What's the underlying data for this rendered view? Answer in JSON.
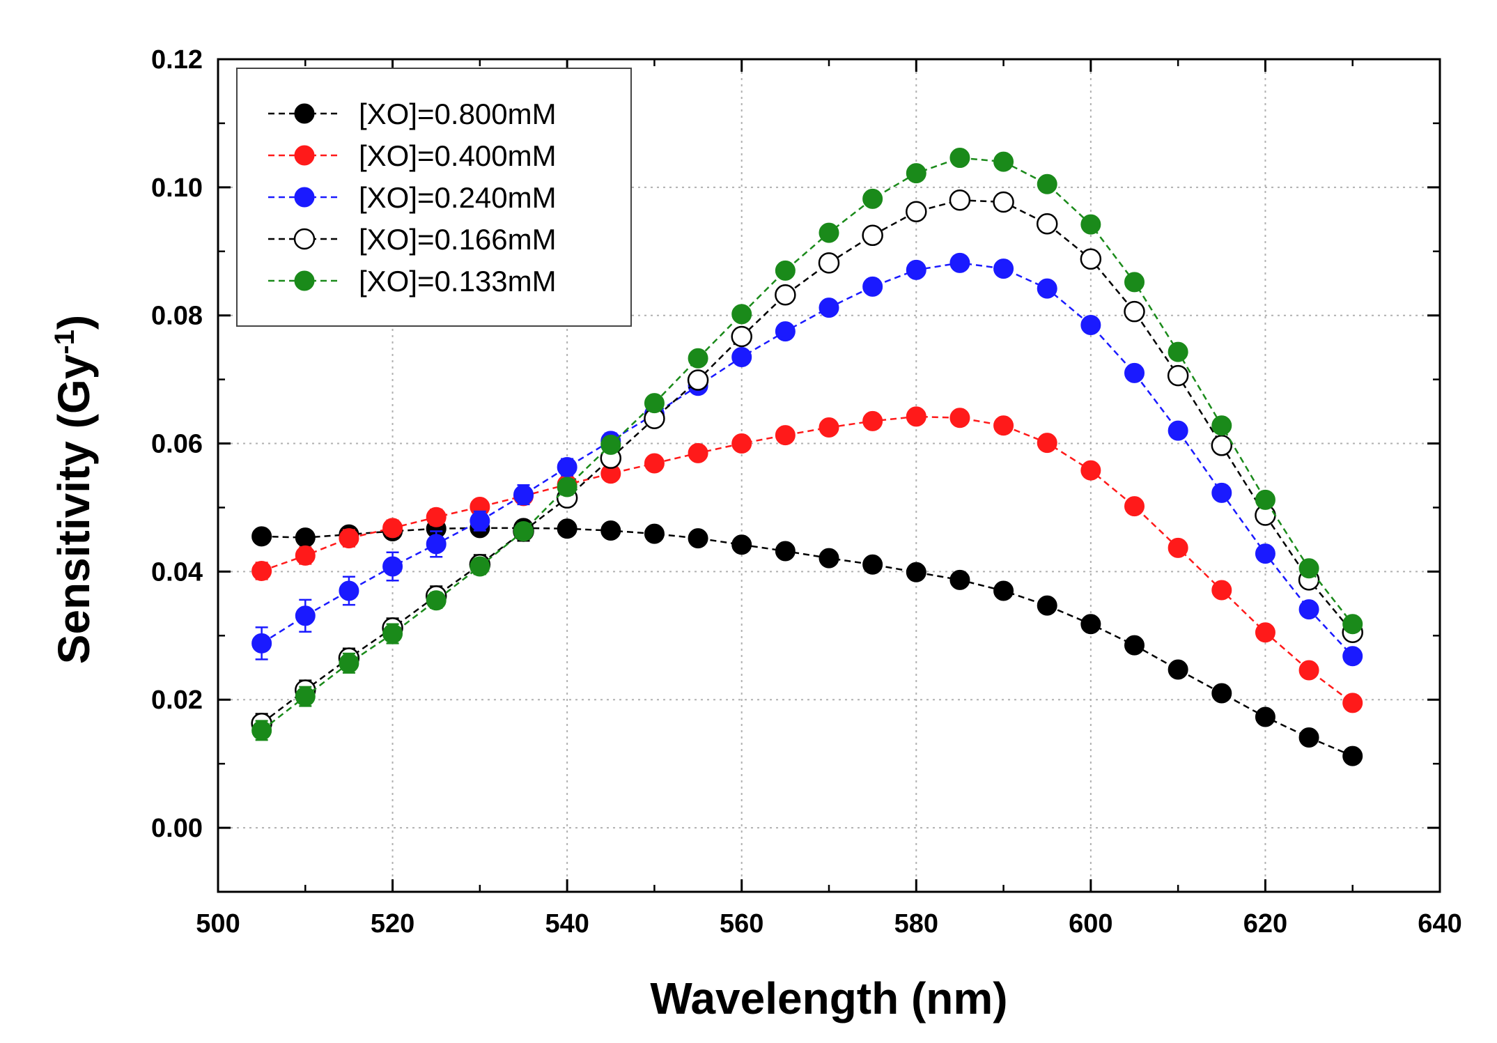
{
  "chart_data": {
    "type": "line",
    "title": "",
    "xlabel": "Wavelength (nm)",
    "ylabel_main": "Sensitivity (Gy",
    "ylabel_sup": "-1",
    "ylabel_close": ")",
    "xlim": [
      500,
      640
    ],
    "ylim": [
      -0.01,
      0.12
    ],
    "x_ticks": [
      500,
      520,
      540,
      560,
      580,
      600,
      620,
      640
    ],
    "x_tick_labels": [
      "500",
      "520",
      "540",
      "560",
      "580",
      "600",
      "620",
      "640"
    ],
    "y_ticks": [
      0.0,
      0.02,
      0.04,
      0.06,
      0.08,
      0.1,
      0.12
    ],
    "y_tick_labels": [
      "0.00",
      "0.02",
      "0.04",
      "0.06",
      "0.08",
      "0.10",
      "0.12"
    ],
    "grid": true,
    "legend_position": "top-left",
    "x": [
      505,
      510,
      515,
      520,
      525,
      530,
      535,
      540,
      545,
      550,
      555,
      560,
      565,
      570,
      575,
      580,
      585,
      590,
      595,
      600,
      605,
      610,
      615,
      620,
      625,
      630
    ],
    "series": [
      {
        "name": "[XO]=0.800mM",
        "color": "#000000",
        "marker": "filled",
        "values": [
          0.0455,
          0.0453,
          0.0458,
          0.0463,
          0.0467,
          0.0468,
          0.0468,
          0.0467,
          0.0464,
          0.0459,
          0.0452,
          0.0442,
          0.0432,
          0.0421,
          0.0411,
          0.0399,
          0.0387,
          0.037,
          0.0347,
          0.0318,
          0.0285,
          0.0247,
          0.021,
          0.0173,
          0.0141,
          0.0112
        ],
        "errors": [
          0.0008,
          0.0008,
          0.0008,
          0.0008,
          0.0008,
          0.0008,
          0.0008,
          0.0008,
          0.0008,
          0.0008,
          0.0008,
          0.0008,
          0.0008,
          0.0008,
          0.0008,
          0.0008,
          0.0008,
          0.0008,
          0.0008,
          0.0008,
          0.0008,
          0.0008,
          0.0008,
          0.0008,
          0.0008,
          0.0008
        ]
      },
      {
        "name": "[XO]=0.400mM",
        "color": "#ff1a1a",
        "marker": "filled",
        "values": [
          0.0401,
          0.0425,
          0.0452,
          0.0468,
          0.0485,
          0.0501,
          0.0518,
          0.0536,
          0.0553,
          0.0569,
          0.0585,
          0.06,
          0.0613,
          0.0625,
          0.0635,
          0.0642,
          0.064,
          0.0628,
          0.0601,
          0.0558,
          0.0502,
          0.0437,
          0.0371,
          0.0305,
          0.0246,
          0.0195
        ],
        "errors": [
          0.0013,
          0.0013,
          0.0013,
          0.0012,
          0.0012,
          0.001,
          0.001,
          0.001,
          0.0008,
          0.0008,
          0.0008,
          0.0008,
          0.0008,
          0.0008,
          0.0008,
          0.0008,
          0.0008,
          0.0008,
          0.0008,
          0.0008,
          0.0008,
          0.0008,
          0.0008,
          0.0008,
          0.0008,
          0.0008
        ]
      },
      {
        "name": "[XO]=0.240mM",
        "color": "#1a1aff",
        "marker": "filled",
        "values": [
          0.0288,
          0.0331,
          0.037,
          0.0408,
          0.0443,
          0.0479,
          0.052,
          0.0563,
          0.0604,
          0.0646,
          0.069,
          0.0735,
          0.0775,
          0.0812,
          0.0845,
          0.0871,
          0.0882,
          0.0873,
          0.0842,
          0.0785,
          0.071,
          0.062,
          0.0523,
          0.0428,
          0.0341,
          0.0268
        ],
        "errors": [
          0.0025,
          0.0025,
          0.0022,
          0.0022,
          0.002,
          0.0015,
          0.0015,
          0.0013,
          0.0012,
          0.001,
          0.001,
          0.001,
          0.0008,
          0.0008,
          0.0008,
          0.0008,
          0.0008,
          0.0008,
          0.0008,
          0.0008,
          0.0008,
          0.0008,
          0.0008,
          0.0008,
          0.0008,
          0.0008
        ]
      },
      {
        "name": "[XO]=0.166mM",
        "color": "#000000",
        "marker": "open",
        "values": [
          0.0163,
          0.0215,
          0.0265,
          0.0312,
          0.0362,
          0.0411,
          0.0463,
          0.0515,
          0.0577,
          0.0639,
          0.0699,
          0.0767,
          0.0832,
          0.0882,
          0.0925,
          0.0962,
          0.098,
          0.0977,
          0.0943,
          0.0888,
          0.0806,
          0.0706,
          0.0597,
          0.0488,
          0.0387,
          0.0305
        ],
        "errors": [
          0.0015,
          0.0015,
          0.0015,
          0.0015,
          0.0015,
          0.0015,
          0.0015,
          0.0012,
          0.0012,
          0.0012,
          0.0012,
          0.0012,
          0.0012,
          0.0012,
          0.0012,
          0.0012,
          0.0012,
          0.0012,
          0.0012,
          0.0012,
          0.0012,
          0.0012,
          0.0012,
          0.0012,
          0.0012,
          0.0012
        ]
      },
      {
        "name": "[XO]=0.133mM",
        "color": "#1a8a1a",
        "marker": "filled",
        "values": [
          0.0152,
          0.0205,
          0.0257,
          0.0303,
          0.0355,
          0.0408,
          0.0463,
          0.0532,
          0.0598,
          0.0663,
          0.0733,
          0.0802,
          0.087,
          0.0929,
          0.0982,
          0.1022,
          0.1046,
          0.104,
          0.1005,
          0.0942,
          0.0852,
          0.0743,
          0.0628,
          0.0512,
          0.0405,
          0.0318
        ],
        "errors": [
          0.0015,
          0.0015,
          0.0015,
          0.0015,
          0.0012,
          0.0012,
          0.0012,
          0.0012,
          0.001,
          0.001,
          0.001,
          0.001,
          0.001,
          0.001,
          0.001,
          0.001,
          0.001,
          0.001,
          0.001,
          0.001,
          0.001,
          0.001,
          0.001,
          0.001,
          0.001,
          0.001
        ]
      }
    ]
  }
}
